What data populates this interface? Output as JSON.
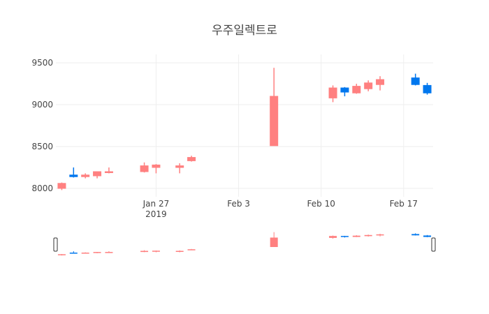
{
  "chart_data": {
    "type": "candlestick",
    "title": "우주일렉트로",
    "xlabel": "",
    "ylabel": "",
    "ylim": [
      7900,
      9600
    ],
    "y_ticks": [
      "8000",
      "8500",
      "9000",
      "9500"
    ],
    "x_ticks": [
      {
        "date": "2019-01-27",
        "label": "Jan 27",
        "sublabel": "2019"
      },
      {
        "date": "2019-02-03",
        "label": "Feb 3",
        "sublabel": ""
      },
      {
        "date": "2019-02-10",
        "label": "Feb 10",
        "sublabel": ""
      },
      {
        "date": "2019-02-17",
        "label": "Feb 17",
        "sublabel": ""
      }
    ],
    "x_range": [
      "2019-01-19",
      "2019-02-19"
    ],
    "grid": true,
    "rangeslider": true,
    "colors": {
      "increasing": "#ff8080",
      "decreasing": "#0077ee"
    },
    "candles": [
      {
        "date": "2019-01-19",
        "open": 8000,
        "high": 8070,
        "low": 7980,
        "close": 8060
      },
      {
        "date": "2019-01-20",
        "open": 8160,
        "high": 8250,
        "low": 8130,
        "close": 8140
      },
      {
        "date": "2019-01-21",
        "open": 8140,
        "high": 8180,
        "low": 8120,
        "close": 8160
      },
      {
        "date": "2019-01-22",
        "open": 8150,
        "high": 8200,
        "low": 8120,
        "close": 8200
      },
      {
        "date": "2019-01-23",
        "open": 8190,
        "high": 8250,
        "low": 8180,
        "close": 8200
      },
      {
        "date": "2019-01-26",
        "open": 8200,
        "high": 8310,
        "low": 8190,
        "close": 8270
      },
      {
        "date": "2019-01-27",
        "open": 8250,
        "high": 8290,
        "low": 8180,
        "close": 8280
      },
      {
        "date": "2019-01-29",
        "open": 8250,
        "high": 8300,
        "low": 8180,
        "close": 8270
      },
      {
        "date": "2019-01-30",
        "open": 8330,
        "high": 8390,
        "low": 8320,
        "close": 8370
      },
      {
        "date": "2019-02-06",
        "open": 8510,
        "high": 9440,
        "low": 8510,
        "close": 9100
      },
      {
        "date": "2019-02-11",
        "open": 9080,
        "high": 9230,
        "low": 9030,
        "close": 9200
      },
      {
        "date": "2019-02-12",
        "open": 9200,
        "high": 9210,
        "low": 9100,
        "close": 9150
      },
      {
        "date": "2019-02-13",
        "open": 9140,
        "high": 9250,
        "low": 9130,
        "close": 9220
      },
      {
        "date": "2019-02-14",
        "open": 9190,
        "high": 9290,
        "low": 9160,
        "close": 9260
      },
      {
        "date": "2019-02-15",
        "open": 9240,
        "high": 9340,
        "low": 9170,
        "close": 9300
      },
      {
        "date": "2019-02-18",
        "open": 9320,
        "high": 9370,
        "low": 9230,
        "close": 9240
      },
      {
        "date": "2019-02-19",
        "open": 9230,
        "high": 9260,
        "low": 9120,
        "close": 9140
      }
    ]
  }
}
